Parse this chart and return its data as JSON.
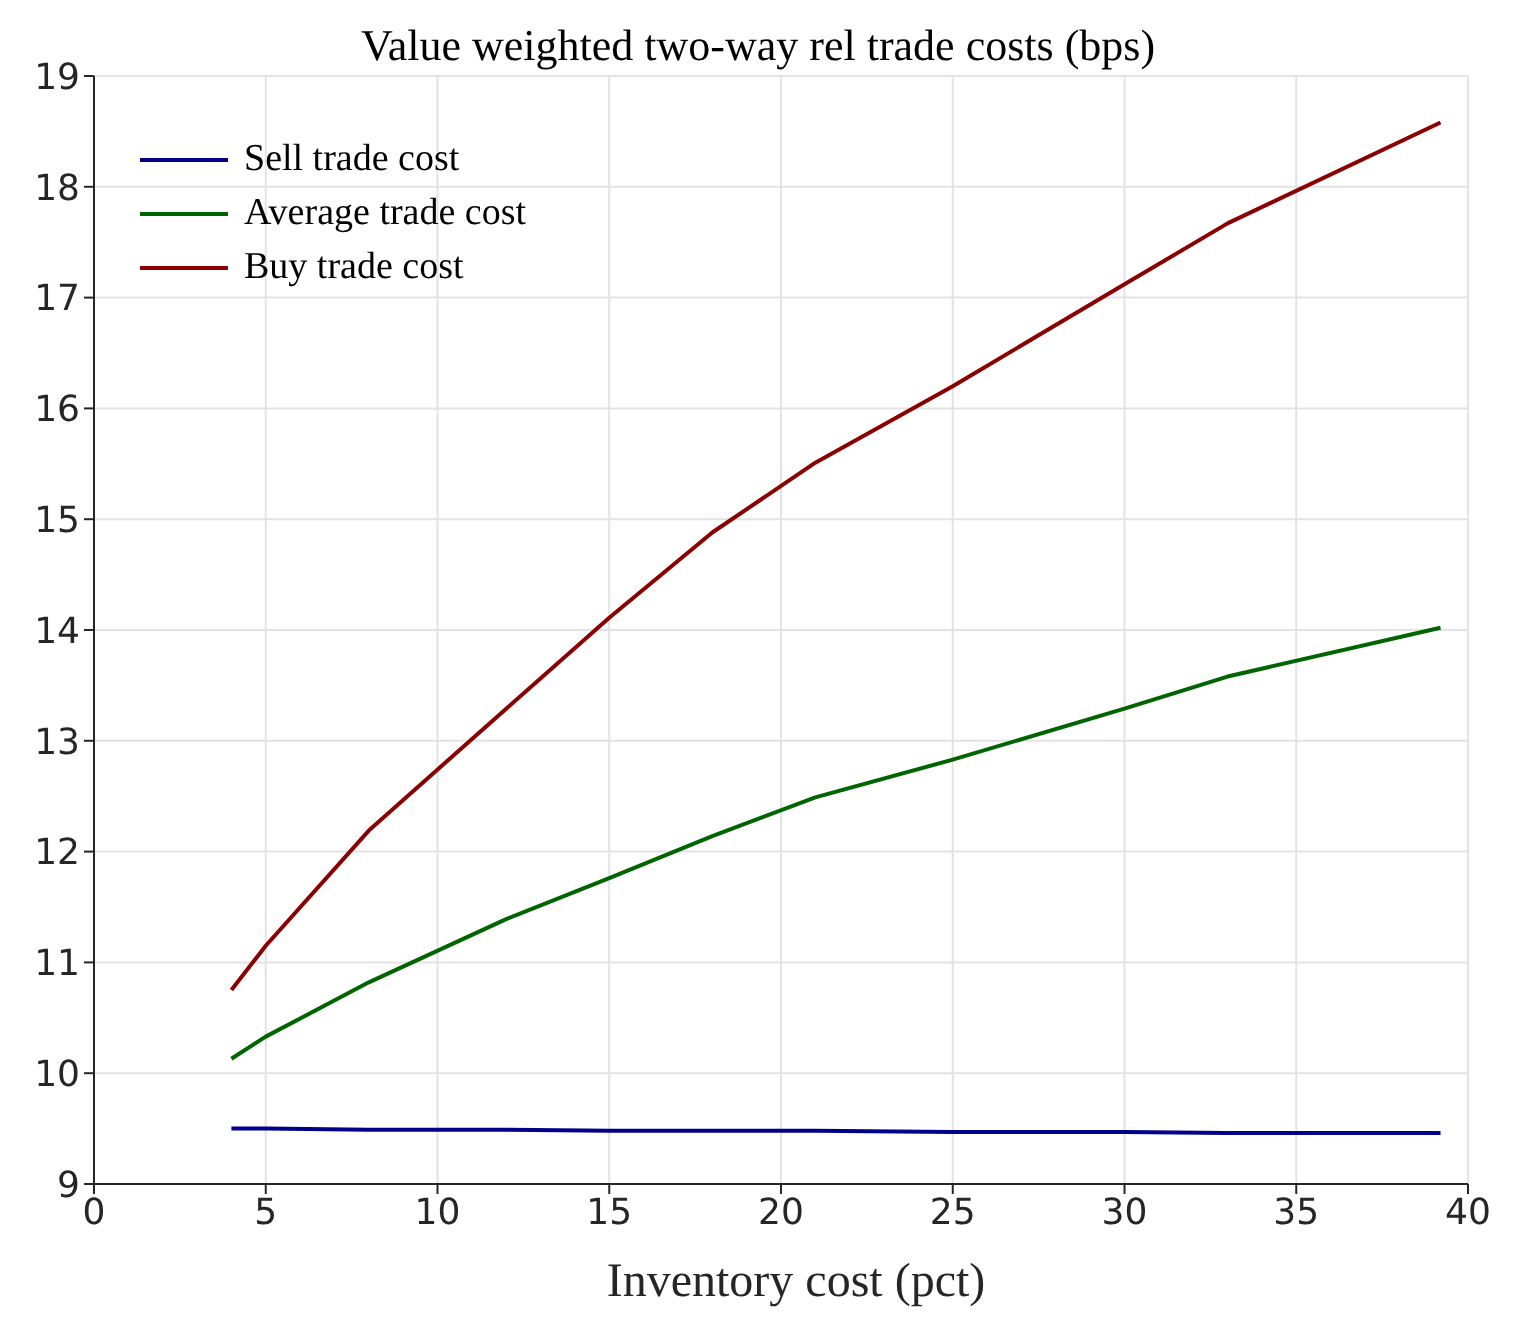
{
  "chart_data": {
    "type": "line",
    "title": "Value weighted two-way rel trade costs (bps)",
    "xlabel": "Inventory cost (pct)",
    "x": [
      4,
      5,
      8,
      12,
      15,
      18,
      21,
      25,
      30,
      33,
      39.2
    ],
    "series": [
      {
        "name": "Sell trade cost",
        "color": "#00008b",
        "values": [
          9.5,
          9.5,
          9.49,
          9.49,
          9.48,
          9.48,
          9.48,
          9.47,
          9.47,
          9.46,
          9.46
        ]
      },
      {
        "name": "Average trade cost",
        "color": "#006400",
        "values": [
          10.13,
          10.33,
          10.82,
          11.39,
          11.76,
          12.14,
          12.49,
          12.83,
          13.29,
          13.58,
          14.02
        ]
      },
      {
        "name": "Buy trade cost",
        "color": "#8b0000",
        "values": [
          10.75,
          11.15,
          12.19,
          13.29,
          14.11,
          14.88,
          15.51,
          16.2,
          17.12,
          17.67,
          18.58
        ]
      }
    ],
    "xlim": [
      0,
      40
    ],
    "xticks": [
      0,
      5,
      10,
      15,
      20,
      25,
      30,
      35,
      40
    ],
    "ylim": [
      9,
      19
    ],
    "yticks": [
      9,
      10,
      11,
      12,
      13,
      14,
      15,
      16,
      17,
      18,
      19
    ],
    "grid": true,
    "legend": "top left",
    "marker": "none",
    "line_style": "solid"
  }
}
